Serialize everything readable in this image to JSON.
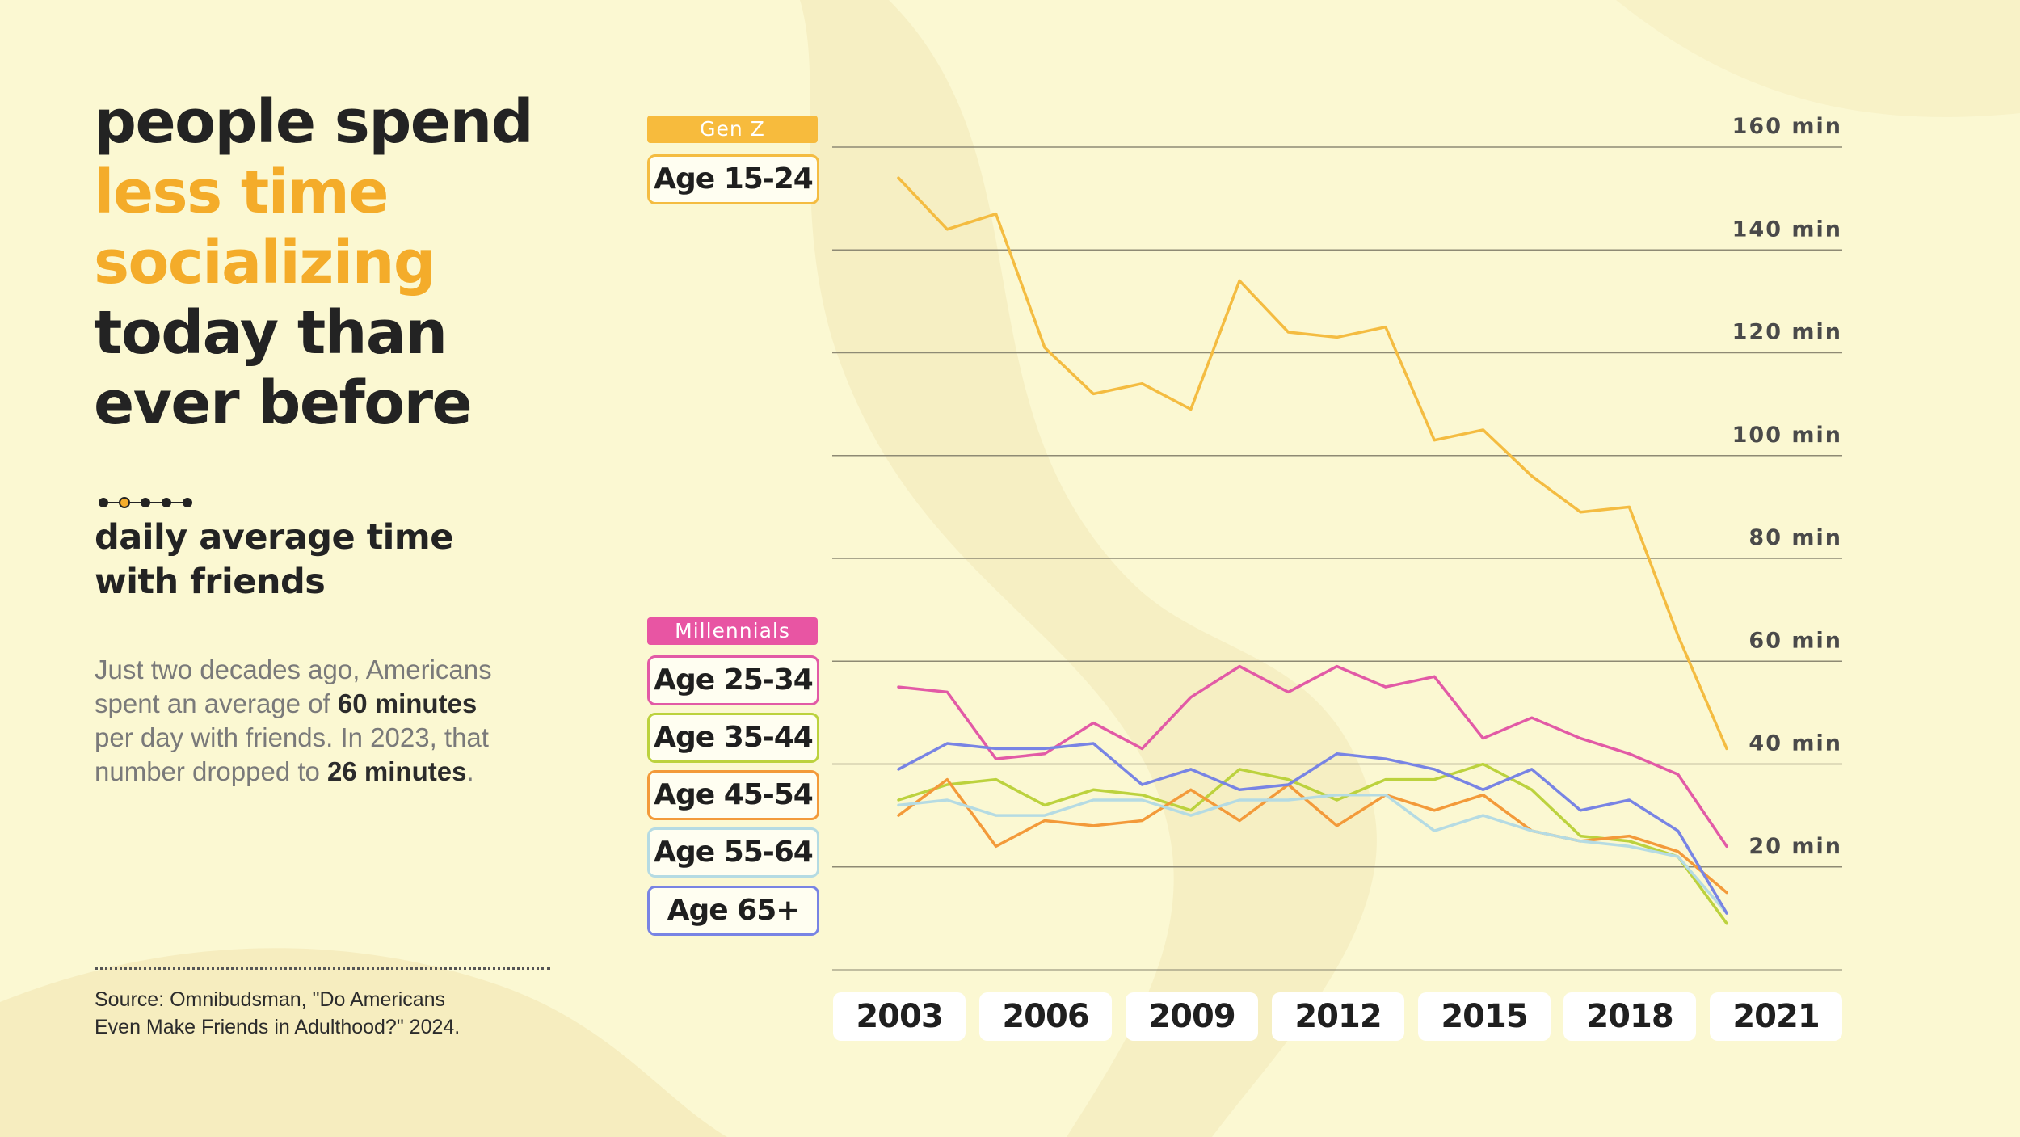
{
  "headline": {
    "line1": "people spend",
    "line2": "less time",
    "line3": "socializing",
    "line4": "today than",
    "line5": "ever before"
  },
  "subtitle": {
    "line1": "daily average time",
    "line2": "with friends"
  },
  "description": {
    "line1": "Just two decades ago, Americans",
    "line2_pre": "spent an average of ",
    "line2_bold": "60 minutes",
    "line3": "per day with friends. In 2023, that",
    "line4_pre": "number dropped to ",
    "line4_bold": "26 minutes",
    "line4_post": "."
  },
  "source": {
    "line1": "Source: Omnibudsman, \"Do Americans",
    "line2": "Even Make Friends in Adulthood?\" 2024."
  },
  "legend": {
    "gen_z": "Gen Z",
    "millennials": "Millennials",
    "age_15_24": "Age 15-24",
    "age_25_34": "Age 25-34",
    "age_35_44": "Age 35-44",
    "age_45_54": "Age 45-54",
    "age_55_64": "Age 55-64",
    "age_65_plus": "Age 65+"
  },
  "colors": {
    "background": "#fbf8d2",
    "accent": "#f4ac2a",
    "gen_z_head": "#f7bb3d",
    "millennials_head": "#e855a3",
    "age_15_24": "#f4bc41",
    "age_25_34": "#e25aa6",
    "age_35_44": "#bcd23e",
    "age_45_54": "#f39a3a",
    "age_55_64": "#b5dbe3",
    "age_65_plus": "#7884e4",
    "grid": "#8e8a74"
  },
  "chart_data": {
    "type": "line",
    "title": "daily average time with friends",
    "xlabel": "",
    "ylabel": "",
    "x": [
      2003,
      2004,
      2005,
      2006,
      2007,
      2008,
      2009,
      2010,
      2011,
      2012,
      2013,
      2014,
      2015,
      2016,
      2017,
      2018,
      2019,
      2020,
      2021
    ],
    "x_ticks": [
      "2003",
      "2006",
      "2009",
      "2012",
      "2015",
      "2018",
      "2021"
    ],
    "y_ticks": [
      {
        "value": 20,
        "label": "20 min"
      },
      {
        "value": 40,
        "label": "40 min"
      },
      {
        "value": 60,
        "label": "60 min"
      },
      {
        "value": 80,
        "label": "80 min"
      },
      {
        "value": 100,
        "label": "100 min"
      },
      {
        "value": 120,
        "label": "120 min"
      },
      {
        "value": 140,
        "label": "140 min"
      },
      {
        "value": 160,
        "label": "160 min"
      }
    ],
    "ylim": [
      0,
      160
    ],
    "grid": true,
    "legend_position": "left",
    "series": [
      {
        "name": "Age 15-24",
        "color_key": "age_15_24",
        "values": [
          154,
          144,
          147,
          121,
          112,
          114,
          109,
          134,
          124,
          123,
          125,
          103,
          105,
          96,
          89,
          90,
          65,
          43,
          null
        ]
      },
      {
        "name": "Age 25-34",
        "color_key": "age_25_34",
        "values": [
          55,
          54,
          41,
          42,
          48,
          43,
          53,
          59,
          54,
          59,
          55,
          57,
          45,
          49,
          45,
          42,
          38,
          24,
          null
        ]
      },
      {
        "name": "Age 35-44",
        "color_key": "age_35_44",
        "values": [
          33,
          36,
          37,
          32,
          35,
          34,
          31,
          39,
          37,
          33,
          37,
          37,
          40,
          35,
          26,
          25,
          22,
          9,
          null
        ]
      },
      {
        "name": "Age 45-54",
        "color_key": "age_45_54",
        "values": [
          30,
          37,
          24,
          29,
          28,
          29,
          35,
          29,
          36,
          28,
          34,
          31,
          34,
          27,
          25,
          26,
          23,
          15,
          null
        ]
      },
      {
        "name": "Age 55-64",
        "color_key": "age_55_64",
        "values": [
          32,
          33,
          30,
          30,
          33,
          33,
          30,
          33,
          33,
          34,
          34,
          27,
          30,
          27,
          25,
          24,
          22,
          11,
          null
        ]
      },
      {
        "name": "Age 65+",
        "color_key": "age_65_plus",
        "values": [
          39,
          44,
          43,
          43,
          44,
          36,
          39,
          35,
          36,
          42,
          41,
          39,
          35,
          39,
          31,
          33,
          27,
          11,
          null
        ]
      }
    ]
  }
}
